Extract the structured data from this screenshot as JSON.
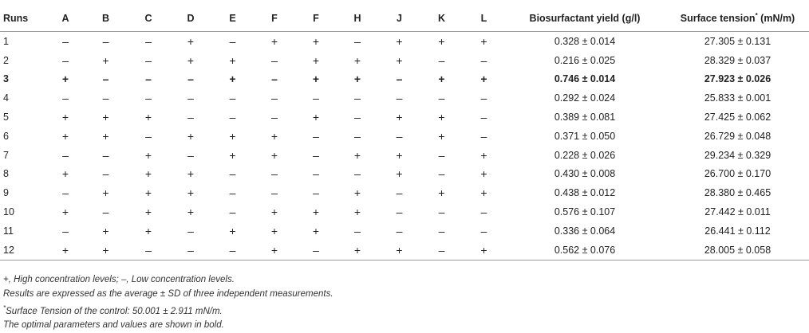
{
  "table": {
    "headers": {
      "runs": "Runs",
      "factors": [
        "A",
        "B",
        "C",
        "D",
        "E",
        "F",
        "F",
        "H",
        "J",
        "K",
        "L"
      ],
      "yield": "Biosurfactant yield (g/l)",
      "tension_main": "Surface tension",
      "tension_mark": "*",
      "tension_unit": " (mN/m)"
    },
    "rows": [
      {
        "run": "1",
        "signs": [
          "–",
          "–",
          "–",
          "+",
          "–",
          "+",
          "+",
          "–",
          "+",
          "+",
          "+"
        ],
        "yield": "0.328 ± 0.014",
        "tension": "27.305 ± 0.131",
        "bold": false
      },
      {
        "run": "2",
        "signs": [
          "–",
          "+",
          "–",
          "+",
          "+",
          "–",
          "+",
          "+",
          "+",
          "–",
          "–"
        ],
        "yield": "0.216 ± 0.025",
        "tension": "28.329 ± 0.037",
        "bold": false
      },
      {
        "run": "3",
        "signs": [
          "+",
          "–",
          "–",
          "–",
          "+",
          "–",
          "+",
          "+",
          "–",
          "+",
          "+"
        ],
        "yield": "0.746 ± 0.014",
        "tension": "27.923 ± 0.026",
        "bold": true
      },
      {
        "run": "4",
        "signs": [
          "–",
          "–",
          "–",
          "–",
          "–",
          "–",
          "–",
          "–",
          "–",
          "–",
          "–"
        ],
        "yield": "0.292 ± 0.024",
        "tension": "25.833 ± 0.001",
        "bold": false
      },
      {
        "run": "5",
        "signs": [
          "+",
          "+",
          "+",
          "–",
          "–",
          "–",
          "+",
          "–",
          "+",
          "+",
          "–"
        ],
        "yield": "0.389 ± 0.081",
        "tension": "27.425 ± 0.062",
        "bold": false
      },
      {
        "run": "6",
        "signs": [
          "+",
          "+",
          "–",
          "+",
          "+",
          "+",
          "–",
          "–",
          "–",
          "+",
          "–"
        ],
        "yield": "0.371 ± 0.050",
        "tension": "26.729 ± 0.048",
        "bold": false
      },
      {
        "run": "7",
        "signs": [
          "–",
          "–",
          "+",
          "–",
          "+",
          "+",
          "–",
          "+",
          "+",
          "–",
          "+"
        ],
        "yield": "0.228 ± 0.026",
        "tension": "29.234 ± 0.329",
        "bold": false
      },
      {
        "run": "8",
        "signs": [
          "+",
          "–",
          "+",
          "+",
          "–",
          "–",
          "–",
          "–",
          "+",
          "–",
          "+"
        ],
        "yield": "0.430 ± 0.008",
        "tension": "26.700 ± 0.170",
        "bold": false
      },
      {
        "run": "9",
        "signs": [
          "–",
          "+",
          "+",
          "+",
          "–",
          "–",
          "–",
          "+",
          "–",
          "+",
          "+"
        ],
        "yield": "0.438 ± 0.012",
        "tension": "28.380 ± 0.465",
        "bold": false
      },
      {
        "run": "10",
        "signs": [
          "+",
          "–",
          "+",
          "+",
          "–",
          "+",
          "+",
          "+",
          "–",
          "–",
          "–"
        ],
        "yield": "0.576 ± 0.107",
        "tension": "27.442 ± 0.011",
        "bold": false
      },
      {
        "run": "11",
        "signs": [
          "–",
          "+",
          "+",
          "–",
          "+",
          "+",
          "+",
          "–",
          "–",
          "–",
          "–"
        ],
        "yield": "0.336 ± 0.064",
        "tension": "26.441 ± 0.112",
        "bold": false
      },
      {
        "run": "12",
        "signs": [
          "+",
          "+",
          "–",
          "–",
          "–",
          "+",
          "–",
          "+",
          "+",
          "–",
          "+"
        ],
        "yield": "0.562 ± 0.076",
        "tension": "28.005 ± 0.058",
        "bold": false
      }
    ]
  },
  "footnotes": {
    "levels": "+, High concentration levels; –, Low concentration levels.",
    "results": "Results are expressed as the average ± SD of three independent measurements.",
    "control_mark": "*",
    "control": "Surface Tension of the control: 50.001 ± 2.911 mN/m.",
    "optimal": "The optimal parameters and values are shown in bold."
  }
}
